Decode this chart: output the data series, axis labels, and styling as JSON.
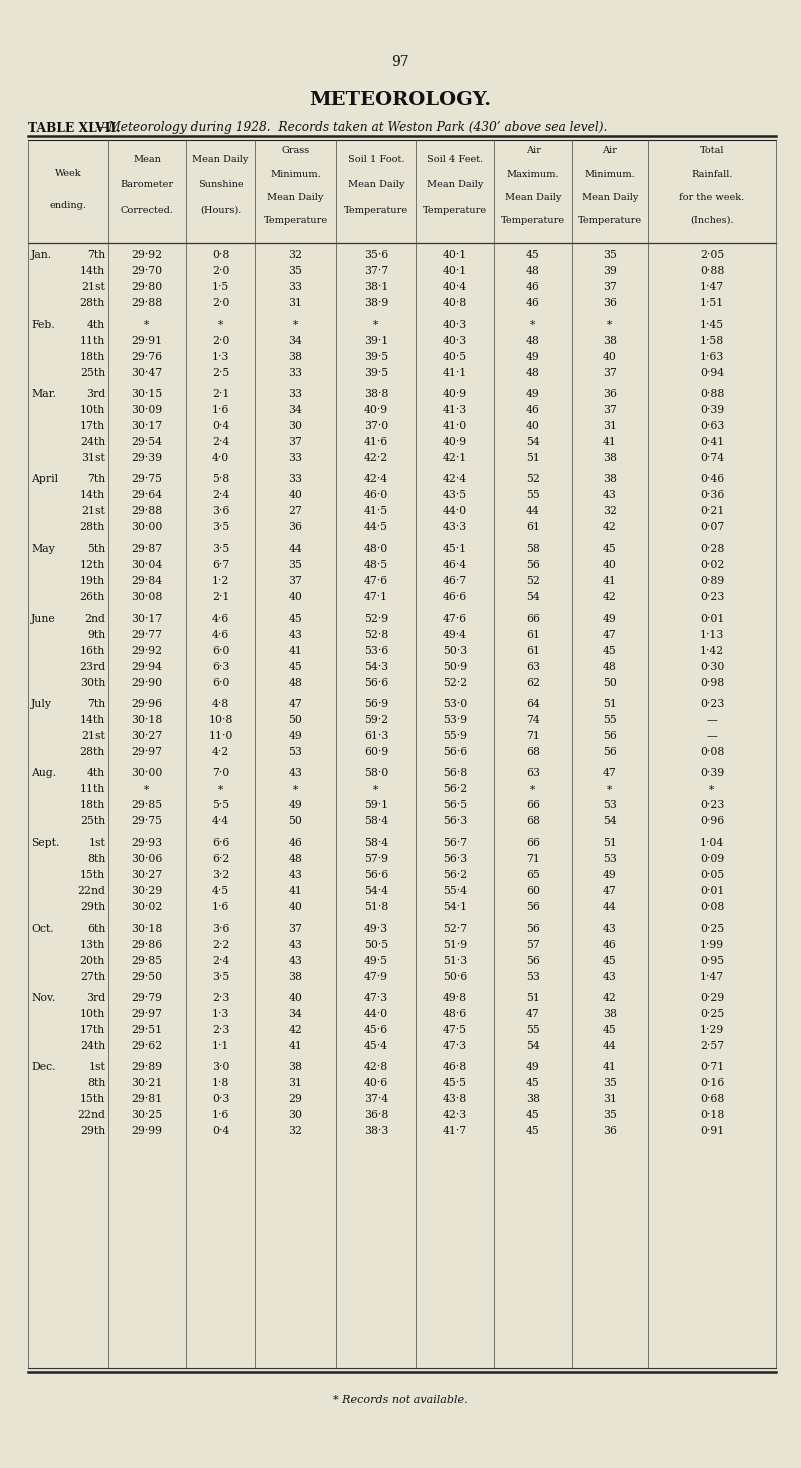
{
  "page_number": "97",
  "title": "METEOROLOGY.",
  "subtitle_bold": "TABLE XLVII.",
  "subtitle_italic": "—Meteorology during 1928.  Records taken at Weston Park (430’ above sea level).",
  "background_color": "#e8e4d4",
  "text_color": "#111111",
  "col_header_lines": [
    [
      "Week",
      "ending."
    ],
    [
      "Mean",
      "Barometer",
      "Corrected."
    ],
    [
      "Mean Daily",
      "Sunshine",
      "(Hours)."
    ],
    [
      "Grass",
      "Minimum.",
      "Mean Daily",
      "Temperature"
    ],
    [
      "Soil 1 Foot.",
      "Mean Daily",
      "Temperature"
    ],
    [
      "Soil 4 Feet.",
      "Mean Daily",
      "Temperature"
    ],
    [
      "Air",
      "Maximum.",
      "Mean Daily",
      "Temperature"
    ],
    [
      "Air",
      "Minimum.",
      "Mean Daily",
      "Temperature"
    ],
    [
      "Total",
      "Rainfall.",
      "for the week.",
      "(Inches)."
    ]
  ],
  "rows": [
    [
      "Jan.",
      "7th",
      "29·92",
      "0·8",
      "32",
      "35·6",
      "40·1",
      "45",
      "35",
      "2·05"
    ],
    [
      "",
      "14th",
      "29·70",
      "2·0",
      "35",
      "37·7",
      "40·1",
      "48",
      "39",
      "0·88"
    ],
    [
      "",
      "21st",
      "29·80",
      "1·5",
      "33",
      "38·1",
      "40·4",
      "46",
      "37",
      "1·47"
    ],
    [
      "",
      "28th",
      "29·88",
      "2·0",
      "31",
      "38·9",
      "40·8",
      "46",
      "36",
      "1·51"
    ],
    [
      "SEP",
      "",
      "",
      "",
      "",
      "",
      "",
      "",
      "",
      ""
    ],
    [
      "Feb.",
      "4th",
      "*",
      "*",
      "*",
      "*",
      "40·3",
      "*",
      "*",
      "1·45"
    ],
    [
      "",
      "11th",
      "29·91",
      "2·0",
      "34",
      "39·1",
      "40·3",
      "48",
      "38",
      "1·58"
    ],
    [
      "",
      "18th",
      "29·76",
      "1·3",
      "38",
      "39·5",
      "40·5",
      "49",
      "40",
      "1·63"
    ],
    [
      "",
      "25th",
      "30·47",
      "2·5",
      "33",
      "39·5",
      "41·1",
      "48",
      "37",
      "0·94"
    ],
    [
      "SEP",
      "",
      "",
      "",
      "",
      "",
      "",
      "",
      "",
      ""
    ],
    [
      "Mar.",
      "3rd",
      "30·15",
      "2·1",
      "33",
      "38·8",
      "40·9",
      "49",
      "36",
      "0·88"
    ],
    [
      "",
      "10th",
      "30·09",
      "1·6",
      "34",
      "40·9",
      "41·3",
      "46",
      "37",
      "0·39"
    ],
    [
      "",
      "17th",
      "30·17",
      "0·4",
      "30",
      "37·0",
      "41·0",
      "40",
      "31",
      "0·63"
    ],
    [
      "",
      "24th",
      "29·54",
      "2·4",
      "37",
      "41·6",
      "40·9",
      "54",
      "41",
      "0·41"
    ],
    [
      "",
      "31st",
      "29·39",
      "4·0",
      "33",
      "42·2",
      "42·1",
      "51",
      "38",
      "0·74"
    ],
    [
      "SEP",
      "",
      "",
      "",
      "",
      "",
      "",
      "",
      "",
      ""
    ],
    [
      "April",
      "7th",
      "29·75",
      "5·8",
      "33",
      "42·4",
      "42·4",
      "52",
      "38",
      "0·46"
    ],
    [
      "",
      "14th",
      "29·64",
      "2·4",
      "40",
      "46·0",
      "43·5",
      "55",
      "43",
      "0·36"
    ],
    [
      "",
      "21st",
      "29·88",
      "3·6",
      "27",
      "41·5",
      "44·0",
      "44",
      "32",
      "0·21"
    ],
    [
      "",
      "28th",
      "30·00",
      "3·5",
      "36",
      "44·5",
      "43·3",
      "61",
      "42",
      "0·07"
    ],
    [
      "SEP",
      "",
      "",
      "",
      "",
      "",
      "",
      "",
      "",
      ""
    ],
    [
      "May",
      "5th",
      "29·87",
      "3·5",
      "44",
      "48·0",
      "45·1",
      "58",
      "45",
      "0·28"
    ],
    [
      "",
      "12th",
      "30·04",
      "6·7",
      "35",
      "48·5",
      "46·4",
      "56",
      "40",
      "0·02"
    ],
    [
      "",
      "19th",
      "29·84",
      "1·2",
      "37",
      "47·6",
      "46·7",
      "52",
      "41",
      "0·89"
    ],
    [
      "",
      "26th",
      "30·08",
      "2·1",
      "40",
      "47·1",
      "46·6",
      "54",
      "42",
      "0·23"
    ],
    [
      "SEP",
      "",
      "",
      "",
      "",
      "",
      "",
      "",
      "",
      ""
    ],
    [
      "June",
      "2nd",
      "30·17",
      "4·6",
      "45",
      "52·9",
      "47·6",
      "66",
      "49",
      "0·01"
    ],
    [
      "",
      "9th",
      "29·77",
      "4·6",
      "43",
      "52·8",
      "49·4",
      "61",
      "47",
      "1·13"
    ],
    [
      "",
      "16th",
      "29·92",
      "6·0",
      "41",
      "53·6",
      "50·3",
      "61",
      "45",
      "1·42"
    ],
    [
      "",
      "23rd",
      "29·94",
      "6·3",
      "45",
      "54·3",
      "50·9",
      "63",
      "48",
      "0·30"
    ],
    [
      "",
      "30th",
      "29·90",
      "6·0",
      "48",
      "56·6",
      "52·2",
      "62",
      "50",
      "0·98"
    ],
    [
      "SEP",
      "",
      "",
      "",
      "",
      "",
      "",
      "",
      "",
      ""
    ],
    [
      "July",
      "7th",
      "29·96",
      "4·8",
      "47",
      "56·9",
      "53·0",
      "64",
      "51",
      "0·23"
    ],
    [
      "",
      "14th",
      "30·18",
      "10·8",
      "50",
      "59·2",
      "53·9",
      "74",
      "55",
      "—"
    ],
    [
      "",
      "21st",
      "30·27",
      "11·0",
      "49",
      "61·3",
      "55·9",
      "71",
      "56",
      "—"
    ],
    [
      "",
      "28th",
      "29·97",
      "4·2",
      "53",
      "60·9",
      "56·6",
      "68",
      "56",
      "0·08"
    ],
    [
      "SEP",
      "",
      "",
      "",
      "",
      "",
      "",
      "",
      "",
      ""
    ],
    [
      "Aug.",
      "4th",
      "30·00",
      "7·0",
      "43",
      "58·0",
      "56·8",
      "63",
      "47",
      "0·39"
    ],
    [
      "",
      "11th",
      "*",
      "*",
      "*",
      "*",
      "56·2",
      "*",
      "*",
      "*"
    ],
    [
      "",
      "18th",
      "29·85",
      "5·5",
      "49",
      "59·1",
      "56·5",
      "66",
      "53",
      "0·23"
    ],
    [
      "",
      "25th",
      "29·75",
      "4·4",
      "50",
      "58·4",
      "56·3",
      "68",
      "54",
      "0·96"
    ],
    [
      "SEP",
      "",
      "",
      "",
      "",
      "",
      "",
      "",
      "",
      ""
    ],
    [
      "Sept.",
      "1st",
      "29·93",
      "6·6",
      "46",
      "58·4",
      "56·7",
      "66",
      "51",
      "1·04"
    ],
    [
      "",
      "8th",
      "30·06",
      "6·2",
      "48",
      "57·9",
      "56·3",
      "71",
      "53",
      "0·09"
    ],
    [
      "",
      "15th",
      "30·27",
      "3·2",
      "43",
      "56·6",
      "56·2",
      "65",
      "49",
      "0·05"
    ],
    [
      "",
      "22nd",
      "30·29",
      "4·5",
      "41",
      "54·4",
      "55·4",
      "60",
      "47",
      "0·01"
    ],
    [
      "",
      "29th",
      "30·02",
      "1·6",
      "40",
      "51·8",
      "54·1",
      "56",
      "44",
      "0·08"
    ],
    [
      "SEP",
      "",
      "",
      "",
      "",
      "",
      "",
      "",
      "",
      ""
    ],
    [
      "Oct.",
      "6th",
      "30·18",
      "3·6",
      "37",
      "49·3",
      "52·7",
      "56",
      "43",
      "0·25"
    ],
    [
      "",
      "13th",
      "29·86",
      "2·2",
      "43",
      "50·5",
      "51·9",
      "57",
      "46",
      "1·99"
    ],
    [
      "",
      "20th",
      "29·85",
      "2·4",
      "43",
      "49·5",
      "51·3",
      "56",
      "45",
      "0·95"
    ],
    [
      "",
      "27th",
      "29·50",
      "3·5",
      "38",
      "47·9",
      "50·6",
      "53",
      "43",
      "1·47"
    ],
    [
      "SEP",
      "",
      "",
      "",
      "",
      "",
      "",
      "",
      "",
      ""
    ],
    [
      "Nov.",
      "3rd",
      "29·79",
      "2·3",
      "40",
      "47·3",
      "49·8",
      "51",
      "42",
      "0·29"
    ],
    [
      "",
      "10th",
      "29·97",
      "1·3",
      "34",
      "44·0",
      "48·6",
      "47",
      "38",
      "0·25"
    ],
    [
      "",
      "17th",
      "29·51",
      "2·3",
      "42",
      "45·6",
      "47·5",
      "55",
      "45",
      "1·29"
    ],
    [
      "",
      "24th",
      "29·62",
      "1·1",
      "41",
      "45·4",
      "47·3",
      "54",
      "44",
      "2·57"
    ],
    [
      "SEP",
      "",
      "",
      "",
      "",
      "",
      "",
      "",
      "",
      ""
    ],
    [
      "Dec.",
      "1st",
      "29·89",
      "3·0",
      "38",
      "42·8",
      "46·8",
      "49",
      "41",
      "0·71"
    ],
    [
      "",
      "8th",
      "30·21",
      "1·8",
      "31",
      "40·6",
      "45·5",
      "45",
      "35",
      "0·16"
    ],
    [
      "",
      "15th",
      "29·81",
      "0·3",
      "29",
      "37·4",
      "43·8",
      "38",
      "31",
      "0·68"
    ],
    [
      "",
      "22nd",
      "30·25",
      "1·6",
      "30",
      "36·8",
      "42·3",
      "45",
      "35",
      "0·18"
    ],
    [
      "",
      "29th",
      "29·99",
      "0·4",
      "32",
      "38·3",
      "41·7",
      "45",
      "36",
      "0·91"
    ]
  ],
  "footer": "* Records not available."
}
